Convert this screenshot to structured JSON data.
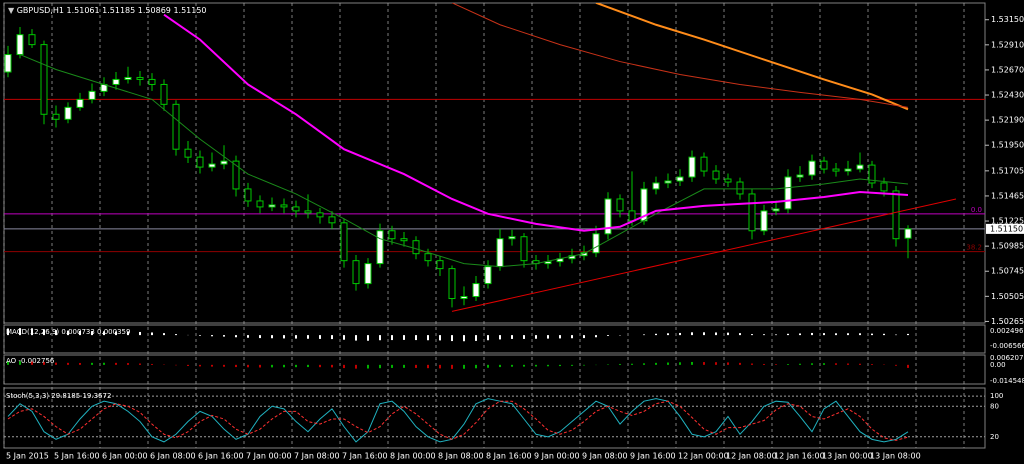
{
  "chart_data": {
    "type": "candlestick",
    "symbol": "GBPUSD,H1",
    "last_close_label": "1.51150",
    "bull_color": "#ffffff",
    "bear_color": "#000000",
    "candle_outline": "#00c800",
    "candles": [
      [
        1.5265,
        1.529,
        1.526,
        1.52817
      ],
      [
        1.52817,
        1.5308,
        1.5278,
        1.53007
      ],
      [
        1.53007,
        1.5306,
        1.5288,
        1.52912
      ],
      [
        1.52912,
        1.5295,
        1.5215,
        1.52246
      ],
      [
        1.52246,
        1.5233,
        1.5212,
        1.52198
      ],
      [
        1.52198,
        1.5236,
        1.5216,
        1.52312
      ],
      [
        1.52312,
        1.5245,
        1.5228,
        1.52388
      ],
      [
        1.52388,
        1.5254,
        1.5235,
        1.52465
      ],
      [
        1.52465,
        1.526,
        1.5242,
        1.52531
      ],
      [
        1.52531,
        1.5265,
        1.5248,
        1.52579
      ],
      [
        1.52579,
        1.527,
        1.5254,
        1.52598
      ],
      [
        1.52598,
        1.5266,
        1.5252,
        1.52579
      ],
      [
        1.52579,
        1.5264,
        1.5247,
        1.52531
      ],
      [
        1.52531,
        1.5258,
        1.5228,
        1.52341
      ],
      [
        1.52341,
        1.5238,
        1.5185,
        1.51912
      ],
      [
        1.51912,
        1.5199,
        1.5178,
        1.51836
      ],
      [
        1.51836,
        1.519,
        1.5168,
        1.51741
      ],
      [
        1.51741,
        1.5188,
        1.517,
        1.5177
      ],
      [
        1.5177,
        1.5195,
        1.5172,
        1.51798
      ],
      [
        1.51798,
        1.5185,
        1.5146,
        1.51532
      ],
      [
        1.51532,
        1.5159,
        1.5136,
        1.51417
      ],
      [
        1.51417,
        1.5147,
        1.513,
        1.5136
      ],
      [
        1.5136,
        1.5145,
        1.5132,
        1.51379
      ],
      [
        1.51379,
        1.5144,
        1.513,
        1.5136
      ],
      [
        1.5136,
        1.5142,
        1.5126,
        1.51322
      ],
      [
        1.51322,
        1.5148,
        1.5125,
        1.51303
      ],
      [
        1.51303,
        1.5135,
        1.512,
        1.51265
      ],
      [
        1.51265,
        1.5132,
        1.5115,
        1.51208
      ],
      [
        1.51208,
        1.5125,
        1.5078,
        1.50846
      ],
      [
        1.50846,
        1.509,
        1.5056,
        1.50627
      ],
      [
        1.50627,
        1.5087,
        1.5058,
        1.50818
      ],
      [
        1.50818,
        1.512,
        1.5078,
        1.51132
      ],
      [
        1.51132,
        1.5118,
        1.51,
        1.51056
      ],
      [
        1.51056,
        1.5112,
        1.5098,
        1.51037
      ],
      [
        1.51037,
        1.5108,
        1.5086,
        1.50913
      ],
      [
        1.50913,
        1.5096,
        1.5079,
        1.50846
      ],
      [
        1.50846,
        1.5089,
        1.507,
        1.5077
      ],
      [
        1.5077,
        1.508,
        1.504,
        1.50484
      ],
      [
        1.50484,
        1.506,
        1.5042,
        1.50503
      ],
      [
        1.50503,
        1.507,
        1.5046,
        1.50627
      ],
      [
        1.50627,
        1.5085,
        1.5058,
        1.50789
      ],
      [
        1.50789,
        1.5115,
        1.5075,
        1.51056
      ],
      [
        1.51056,
        1.5114,
        1.5099,
        1.51075
      ],
      [
        1.51075,
        1.5111,
        1.5078,
        1.50846
      ],
      [
        1.50846,
        1.509,
        1.5076,
        1.50818
      ],
      [
        1.50818,
        1.509,
        1.5077,
        1.50837
      ],
      [
        1.50837,
        1.5092,
        1.5079,
        1.50865
      ],
      [
        1.50865,
        1.5096,
        1.5082,
        1.50894
      ],
      [
        1.50894,
        1.5099,
        1.5085,
        1.50922
      ],
      [
        1.50922,
        1.5118,
        1.5088,
        1.51103
      ],
      [
        1.51103,
        1.515,
        1.5105,
        1.51436
      ],
      [
        1.51436,
        1.5148,
        1.5126,
        1.51322
      ],
      [
        1.51322,
        1.517,
        1.5118,
        1.51227
      ],
      [
        1.51227,
        1.516,
        1.5119,
        1.51532
      ],
      [
        1.51532,
        1.5165,
        1.5148,
        1.51589
      ],
      [
        1.51589,
        1.5168,
        1.5154,
        1.51608
      ],
      [
        1.51608,
        1.5172,
        1.5156,
        1.51646
      ],
      [
        1.51646,
        1.519,
        1.516,
        1.51836
      ],
      [
        1.51836,
        1.5188,
        1.5165,
        1.51703
      ],
      [
        1.51703,
        1.5176,
        1.5158,
        1.51627
      ],
      [
        1.51627,
        1.5168,
        1.5155,
        1.51598
      ],
      [
        1.51598,
        1.5164,
        1.5143,
        1.51484
      ],
      [
        1.51484,
        1.5153,
        1.5105,
        1.51132
      ],
      [
        1.51132,
        1.5138,
        1.5109,
        1.51322
      ],
      [
        1.51322,
        1.5142,
        1.5128,
        1.51341
      ],
      [
        1.51341,
        1.5172,
        1.513,
        1.51646
      ],
      [
        1.51646,
        1.5175,
        1.516,
        1.51665
      ],
      [
        1.51665,
        1.5186,
        1.5162,
        1.51798
      ],
      [
        1.51798,
        1.5184,
        1.5168,
        1.51722
      ],
      [
        1.51722,
        1.5178,
        1.5165,
        1.51703
      ],
      [
        1.51703,
        1.518,
        1.5166,
        1.51722
      ],
      [
        1.51722,
        1.5188,
        1.5169,
        1.5176
      ],
      [
        1.5176,
        1.518,
        1.5154,
        1.51589
      ],
      [
        1.51589,
        1.5164,
        1.5146,
        1.51513
      ],
      [
        1.51513,
        1.5156,
        1.5098,
        1.51056
      ],
      [
        1.51061,
        1.51185,
        1.50869,
        1.5115
      ]
    ],
    "x_labels": [
      "5 Jan 2015",
      "5 Jan 16:00",
      "6 Jan 00:00",
      "6 Jan 08:00",
      "6 Jan 16:00",
      "7 Jan 00:00",
      "7 Jan 08:00",
      "7 Jan 16:00",
      "8 Jan 00:00",
      "8 Jan 08:00",
      "8 Jan 16:00",
      "9 Jan 00:00",
      "9 Jan 08:00",
      "9 Jan 16:00",
      "12 Jan 00:00",
      "12 Jan 08:00",
      "12 Jan 16:00",
      "13 Jan 00:00",
      "13 Jan 08:00"
    ],
    "ylim": [
      1.5025,
      1.5331
    ],
    "yticks": [
      {
        "value": 1.5315,
        "label": "1.53150"
      },
      {
        "value": 1.5291,
        "label": "1.52910"
      },
      {
        "value": 1.5267,
        "label": "1.52670"
      },
      {
        "value": 1.5243,
        "label": "1.52430"
      },
      {
        "value": 1.5219,
        "label": "1.52190"
      },
      {
        "value": 1.5195,
        "label": "1.51950"
      },
      {
        "value": 1.51705,
        "label": "1.51705"
      },
      {
        "value": 1.51465,
        "label": "1.51465"
      },
      {
        "value": 1.51225,
        "label": "1.51225"
      },
      {
        "value": 1.50985,
        "label": "1.50985"
      },
      {
        "value": 1.50745,
        "label": "1.50745"
      },
      {
        "value": 1.50505,
        "label": "1.50505"
      },
      {
        "value": 1.50265,
        "label": "1.50265"
      }
    ],
    "levels": [
      {
        "price": 1.52388,
        "color": "#c00000"
      },
      {
        "price": 1.51294,
        "color": "#c000c0",
        "label": "0.0"
      },
      {
        "price": 1.50932,
        "color": "#900000",
        "label": "38.2"
      }
    ],
    "overlays": [
      {
        "color": "#1a8a1a",
        "width": 1,
        "x": [
          1,
          4,
          8,
          12,
          16,
          20,
          24,
          28,
          31,
          34,
          38,
          41,
          44,
          48,
          51,
          54,
          58,
          61,
          64,
          68,
          71,
          75
        ],
        "values": [
          1.52817,
          1.52674,
          1.52531,
          1.52388,
          1.52008,
          1.51674,
          1.51484,
          1.51246,
          1.51056,
          1.5096,
          1.50818,
          1.50789,
          1.50818,
          1.50913,
          1.51103,
          1.51294,
          1.51532,
          1.51532,
          1.51532,
          1.51579,
          1.51627,
          1.51579
        ]
      },
      {
        "color": "#ff00ff",
        "width": 2,
        "x": [
          13,
          16,
          20,
          24,
          28,
          33,
          37,
          40,
          44,
          48,
          51,
          54,
          58,
          61,
          64,
          68,
          71,
          75
        ],
        "values": [
          1.53198,
          1.5296,
          1.52531,
          1.52246,
          1.51912,
          1.51674,
          1.51436,
          1.51294,
          1.51198,
          1.51132,
          1.5117,
          1.51322,
          1.5137,
          1.51389,
          1.51408,
          1.51455,
          1.51503,
          1.51474
        ]
      },
      {
        "color": "#ff8c1a",
        "width": 2,
        "x": [
          49,
          54,
          58,
          63,
          68,
          72,
          75
        ],
        "values": [
          1.53312,
          1.53102,
          1.5296,
          1.52769,
          1.52579,
          1.52436,
          1.52293
        ]
      },
      {
        "color": "#c83218",
        "width": 1,
        "x": [
          37,
          41,
          46,
          51,
          56,
          61,
          66,
          71,
          75
        ],
        "values": [
          1.53312,
          1.53102,
          1.52912,
          1.5275,
          1.52626,
          1.52531,
          1.52455,
          1.52388,
          1.52312
        ]
      },
      {
        "color": "#e00000",
        "width": 1,
        "x": [
          37,
          79
        ],
        "values": [
          1.50361,
          1.51436
        ]
      }
    ],
    "indicators": [
      {
        "type": "histogram",
        "name": "MACD(12,26,9)",
        "signal_value": 0.000359,
        "color": "#ffffff",
        "ylim": [
          -0.0102,
          0.0055
        ],
        "yticks": [
          0.002496,
          -0.006566
        ],
        "values": [
          0.004,
          0.0042,
          0.0041,
          0.0035,
          0.003,
          0.0027,
          0.0025,
          0.0024,
          0.0023,
          0.0022,
          0.0021,
          0.0019,
          0.0016,
          0.0012,
          0.0006,
          0.0001,
          -0.0004,
          -0.0007,
          -0.0009,
          -0.0013,
          -0.0016,
          -0.0018,
          -0.0019,
          -0.002,
          -0.0021,
          -0.0022,
          -0.0023,
          -0.0024,
          -0.0028,
          -0.0033,
          -0.0034,
          -0.0031,
          -0.003,
          -0.0029,
          -0.003,
          -0.0031,
          -0.0032,
          -0.0036,
          -0.0037,
          -0.0035,
          -0.0031,
          -0.0026,
          -0.0023,
          -0.0023,
          -0.0022,
          -0.0021,
          -0.002,
          -0.0019,
          -0.0018,
          -0.0013,
          -0.0005,
          -0.0002,
          0,
          0.0004,
          0.0008,
          0.0011,
          0.0013,
          0.0017,
          0.0017,
          0.0016,
          0.0015,
          0.0012,
          0.0006,
          0.0005,
          0.0004,
          0.0008,
          0.001,
          0.0013,
          0.0012,
          0.0011,
          0.0011,
          0.0011,
          0.0009,
          0.0008,
          0.0003,
          0.000733
        ]
      },
      {
        "type": "oscillator",
        "name": "AO",
        "up_color": "#00b000",
        "down_color": "#c00000",
        "ylim": [
          -0.0164,
          0.0089
        ],
        "yticks": [
          0.006207,
          {
            "value": 0,
            "label": "0.00"
          },
          -0.014548
        ],
        "values": [
          0.003,
          0.0034,
          0.0032,
          0.0026,
          0.002,
          0.0018,
          0.0017,
          0.0018,
          0.0019,
          0.0018,
          0.0016,
          0.0012,
          0.0008,
          0.0003,
          -0.0004,
          -0.001,
          -0.0014,
          -0.0016,
          -0.0017,
          -0.002,
          -0.0022,
          -0.0024,
          -0.0023,
          -0.0022,
          -0.0021,
          -0.002,
          -0.0021,
          -0.0023,
          -0.0029,
          -0.0034,
          -0.0033,
          -0.003,
          -0.0028,
          -0.0027,
          -0.0028,
          -0.003,
          -0.0032,
          -0.0036,
          -0.0035,
          -0.0031,
          -0.0026,
          -0.002,
          -0.0017,
          -0.0016,
          -0.0015,
          -0.0013,
          -0.0011,
          -0.0009,
          -0.0006,
          -0.0002,
          0.0004,
          0.0008,
          0.001,
          0.0014,
          0.0018,
          0.0021,
          0.0023,
          0.0026,
          0.0025,
          0.0024,
          0.0022,
          0.0018,
          0.0012,
          0.0008,
          0.0006,
          0.0007,
          0.001,
          0.0014,
          0.0015,
          0.0014,
          0.0012,
          0.001,
          0.0007,
          0.0003,
          -0.0008,
          -0.002756
        ]
      },
      {
        "type": "lines",
        "name": "Stoch(5,3,3)",
        "ylim": [
          -2,
          112
        ],
        "yticks": [
          100,
          80,
          20
        ],
        "series": [
          {
            "color": "#20b2c0",
            "values": [
              60,
              85,
              70,
              30,
              15,
              25,
              55,
              80,
              90,
              85,
              70,
              50,
              20,
              10,
              25,
              50,
              70,
              60,
              35,
              15,
              25,
              60,
              80,
              75,
              50,
              30,
              55,
              75,
              40,
              10,
              30,
              85,
              90,
              70,
              40,
              20,
              10,
              15,
              45,
              85,
              95,
              90,
              85,
              55,
              25,
              20,
              30,
              50,
              70,
              90,
              80,
              45,
              70,
              90,
              95,
              90,
              60,
              25,
              20,
              30,
              60,
              25,
              50,
              80,
              90,
              88,
              60,
              30,
              75,
              90,
              60,
              30,
              15,
              10,
              15,
              29.8185
            ]
          },
          {
            "color": "#ff3030",
            "dashed": true,
            "values": [
              55,
              70,
              75,
              60,
              40,
              25,
              35,
              55,
              75,
              85,
              80,
              68,
              45,
              25,
              18,
              30,
              50,
              62,
              55,
              35,
              25,
              35,
              55,
              70,
              70,
              50,
              45,
              55,
              55,
              40,
              28,
              40,
              65,
              80,
              65,
              45,
              25,
              15,
              25,
              48,
              75,
              90,
              90,
              75,
              55,
              33,
              25,
              33,
              50,
              70,
              80,
              70,
              62,
              70,
              85,
              90,
              80,
              58,
              35,
              25,
              38,
              38,
              45,
              52,
              73,
              85,
              80,
              60,
              55,
              65,
              75,
              60,
              35,
              18,
              13,
              19.3672
            ]
          }
        ]
      }
    ]
  }
}
